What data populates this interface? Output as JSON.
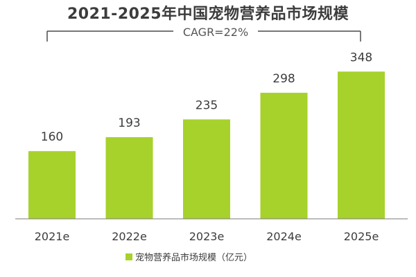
{
  "chart_data": {
    "type": "bar",
    "title": "2021-2025年中国宠物营养品市场规模",
    "categories": [
      "2021e",
      "2022e",
      "2023e",
      "2024e",
      "2025e"
    ],
    "series": [
      {
        "name": "宠物营养品市场规模（亿元）",
        "values": [
          160,
          193,
          235,
          298,
          348
        ],
        "color": "#a6d22b"
      }
    ],
    "data_labels": [
      "160",
      "193",
      "235",
      "298",
      "348"
    ],
    "annotation": "CAGR=22%",
    "xlabel": "",
    "ylabel": "",
    "ylim": [
      0,
      380
    ],
    "grid": false,
    "legend_position": "bottom-center"
  }
}
